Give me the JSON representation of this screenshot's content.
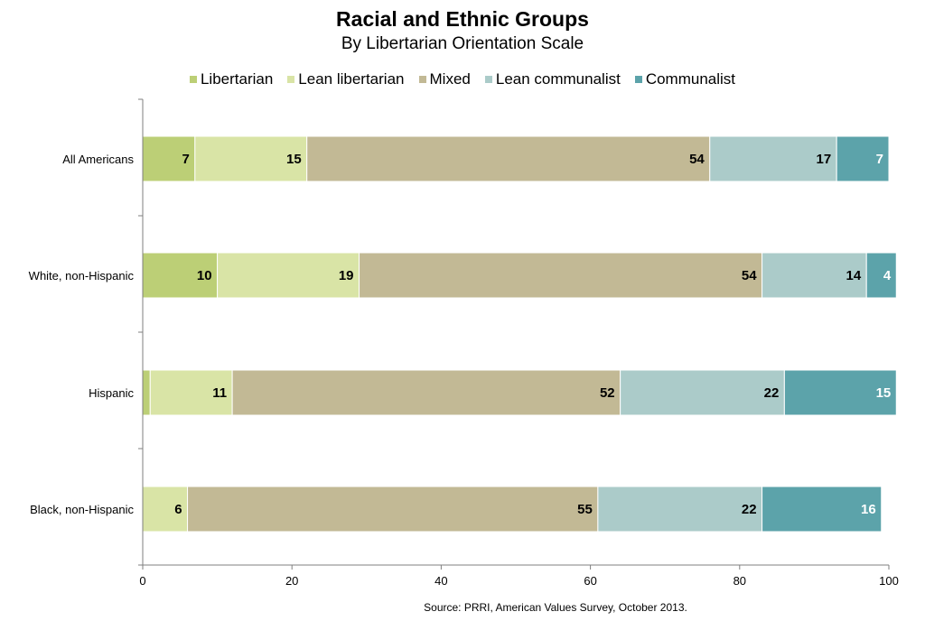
{
  "chart_data": {
    "type": "bar",
    "orientation": "horizontal",
    "stacked": true,
    "title": "Racial and Ethnic Groups",
    "subtitle": "By Libertarian Orientation Scale",
    "categories": [
      "All Americans",
      "White, non-Hispanic",
      "Hispanic",
      "Black, non-Hispanic"
    ],
    "series": [
      {
        "name": "Libertarian",
        "color": "#bccf76",
        "values": [
          7,
          10,
          1,
          0
        ]
      },
      {
        "name": "Lean libertarian",
        "color": "#d9e4a6",
        "values": [
          15,
          19,
          11,
          6
        ]
      },
      {
        "name": "Mixed",
        "color": "#c2b995",
        "values": [
          54,
          54,
          52,
          55
        ]
      },
      {
        "name": "Lean communalist",
        "color": "#abcbc9",
        "values": [
          17,
          14,
          22,
          22
        ]
      },
      {
        "name": "Communalist",
        "color": "#5ca3aa",
        "values": [
          7,
          4,
          15,
          16
        ]
      }
    ],
    "data_labels": [
      [
        "7",
        "15",
        "54",
        "17",
        "7"
      ],
      [
        "10",
        "19",
        "54",
        "14",
        "4"
      ],
      [
        "",
        "11",
        "52",
        "22",
        "15"
      ],
      [
        "",
        "6",
        "55",
        "22",
        "16"
      ]
    ],
    "label_colors": [
      "#000000",
      "#000000",
      "#000000",
      "#000000",
      "#ffffff"
    ],
    "xlim": [
      0,
      100
    ],
    "xticks": [
      0,
      20,
      40,
      60,
      80,
      100
    ],
    "grid": false,
    "legend_position": "top"
  },
  "source_note": "Source: PRRI, American Values Survey, October 2013."
}
